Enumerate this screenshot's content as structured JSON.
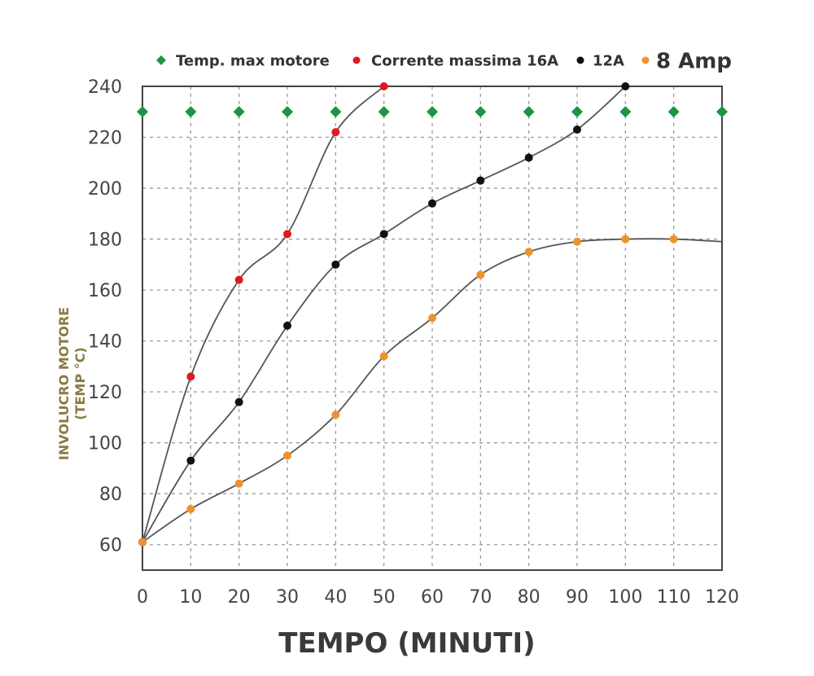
{
  "chart_data": {
    "type": "line",
    "xlabel": "TEMPO (MINUTI)",
    "ylabel_lines": [
      "INVOLUCRO MOTORE",
      "(TEMP °C)"
    ],
    "xlim": [
      0,
      120
    ],
    "ylim": [
      50,
      240
    ],
    "x_ticks": [
      0,
      10,
      20,
      30,
      40,
      50,
      60,
      70,
      80,
      90,
      100,
      110,
      120
    ],
    "y_ticks": [
      60,
      80,
      100,
      120,
      140,
      160,
      180,
      200,
      220,
      240
    ],
    "grid": true,
    "legend_position": "top",
    "series": [
      {
        "name": "Temp. max motore",
        "color": "#1a9641",
        "marker": "diamond",
        "line": "none",
        "x": [
          0,
          10,
          20,
          30,
          40,
          50,
          60,
          70,
          80,
          90,
          100,
          110,
          120
        ],
        "y": [
          230,
          230,
          230,
          230,
          230,
          230,
          230,
          230,
          230,
          230,
          230,
          230,
          230
        ]
      },
      {
        "name": "Corrente massima 16A",
        "color": "#e0191f",
        "marker": "circle",
        "line": "curve",
        "x": [
          0,
          10,
          20,
          30,
          40,
          50
        ],
        "y": [
          61,
          126,
          164,
          182,
          222,
          240
        ]
      },
      {
        "name": "12A",
        "color": "#111111",
        "marker": "circle",
        "line": "curve",
        "x": [
          0,
          10,
          20,
          30,
          40,
          50,
          60,
          70,
          80,
          90,
          100
        ],
        "y": [
          61,
          93,
          116,
          146,
          170,
          182,
          194,
          203,
          212,
          223,
          240
        ]
      },
      {
        "name": "8 Amp",
        "color": "#f0922b",
        "marker": "circle",
        "line": "curve",
        "x": [
          0,
          10,
          20,
          30,
          40,
          50,
          60,
          70,
          80,
          90,
          100,
          110
        ],
        "y": [
          61,
          74,
          84,
          95,
          111,
          134,
          149,
          166,
          175,
          179,
          180,
          180
        ]
      }
    ]
  }
}
